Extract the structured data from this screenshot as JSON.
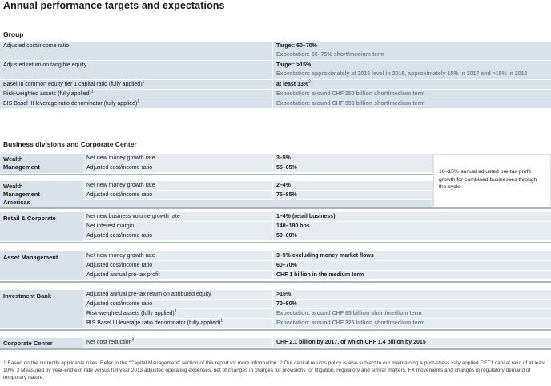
{
  "title": "Annual performance targets and expectations",
  "group": {
    "heading": "Group",
    "rows": [
      {
        "label": "Adjusted cost/income ratio",
        "sup": "",
        "value": "Target: 60–70%",
        "value_style": "bold",
        "sub": "Expectation: 65–75% short/medium term"
      },
      {
        "label": "Adjusted return on tangible equity",
        "sup": "",
        "value": "Target: >15%",
        "value_style": "bold",
        "sub": "Expectation: approximately at 2015 level in 2016, approximately 15% in 2017 and >15% in 2018"
      },
      {
        "label": "Basel III common equity tier 1 capital ratio (fully applied)",
        "sup": "1",
        "value": "at least 13%",
        "value_sup": "2",
        "value_style": "bold",
        "sub": ""
      },
      {
        "label": "Risk-weighted assets (fully applied)",
        "sup": "1",
        "value": "Expectation: around CHF 250 billion short/medium term",
        "value_style": "grey",
        "sub": ""
      },
      {
        "label": "BIS Basel III leverage ratio denominator (fully applied)",
        "sup": "1",
        "value": "Expectation: around CHF 950 billion short/medium term",
        "value_style": "grey",
        "sub": ""
      }
    ]
  },
  "business": {
    "heading": "Business divisions and Corporate Center",
    "side_note": "10–15% annual adjusted pre-tax profit growth for combined businesses through the cycle",
    "divisions": [
      {
        "name_lines": [
          "Wealth",
          "Management"
        ],
        "rows": [
          {
            "label": "Net new money growth rate",
            "sup": "",
            "value": "3–5%",
            "style": "bold"
          },
          {
            "label": "Adjusted cost/income ratio",
            "sup": "",
            "value": "55–65%",
            "style": "bold"
          }
        ]
      },
      {
        "name_lines": [
          "Wealth",
          "Management",
          "Americas"
        ],
        "rows": [
          {
            "label": "Net new money growth rate",
            "sup": "",
            "value": "2–4%",
            "style": "bold"
          },
          {
            "label": "Adjusted cost/income ratio",
            "sup": "",
            "value": "75–85%",
            "style": "bold"
          }
        ]
      },
      {
        "name_lines": [
          "Retail & Corporate"
        ],
        "rows": [
          {
            "label": "Net new business volume growth rate",
            "sup": "",
            "value": "1–4% (retail business)",
            "style": "bold"
          },
          {
            "label": "Net interest margin",
            "sup": "",
            "value": "140–180 bps",
            "style": "bold"
          },
          {
            "label": "Adjusted cost/income ratio",
            "sup": "",
            "value": "50–60%",
            "style": "bold"
          }
        ]
      },
      {
        "name_lines": [
          "Asset Management"
        ],
        "rows": [
          {
            "label": "Net new money growth rate",
            "sup": "",
            "value": "3–5% excluding money market flows",
            "style": "bold"
          },
          {
            "label": "Adjusted cost/income ratio",
            "sup": "",
            "value": "60–70%",
            "style": "bold"
          },
          {
            "label": "Adjusted annual pre-tax profit",
            "sup": "",
            "value": "CHF 1 billion in the medium term",
            "style": "bold"
          }
        ]
      },
      {
        "name_lines": [
          "Investment Bank"
        ],
        "rows": [
          {
            "label": "Adjusted annual pre-tax return on attributed equity",
            "sup": "",
            "value": ">15%",
            "style": "bold"
          },
          {
            "label": "Adjusted cost/income ratio",
            "sup": "",
            "value": "70–80%",
            "style": "bold"
          },
          {
            "label": "Risk-weighted assets (fully applied)",
            "sup": "1",
            "value": "Expectation: around CHF 85 billion short/medium term",
            "style": "grey"
          },
          {
            "label": "BIS Basel III leverage ratio denominator (fully applied)",
            "sup": "1",
            "value": "Expectation: around CHF 325 billion short/medium term",
            "style": "grey"
          }
        ]
      },
      {
        "name_lines": [
          "Corporate Center"
        ],
        "rows": [
          {
            "label": "Net cost reduction",
            "sup": "3",
            "value": "CHF 2.1 billion by 2017, of which CHF 1.4 billion by 2015",
            "style": "bold"
          }
        ]
      }
    ]
  },
  "footnotes": [
    {
      "num": "1",
      "text": "Based on the currently applicable rules. Refer to the “Capital Management” section of this report for more information."
    },
    {
      "num": "2",
      "text": "Our capital returns policy is also subject to our maintaining a post-stress fully applied CET1 capital ratio of at least 10%."
    },
    {
      "num": "3",
      "text": "Measured by year-end exit rate versus full-year 2013 adjusted operating expenses, net of changes in charges for provisions for litigation, regulatory and similar matters, FX movements and changes in regulatory demand of temporary nature."
    }
  ]
}
